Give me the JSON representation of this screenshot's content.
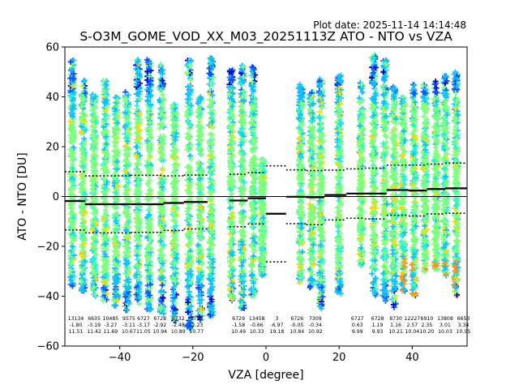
{
  "plot_date": "Plot date: 2025-11-14 14:14:48",
  "chart_data": {
    "type": "scatter",
    "title": "S-O3M_GOME_VOD_XX_M03_20251113Z ATO - NTO vs VZA",
    "xlabel": "VZA [degree]",
    "ylabel": "ATO - NTO [DU]",
    "xlim": [
      -55,
      55
    ],
    "ylim": [
      -60,
      60
    ],
    "xticks": [
      -40,
      -20,
      0,
      20,
      40
    ],
    "yticks": [
      -60,
      -40,
      -20,
      0,
      20,
      40,
      60
    ],
    "zero_line": 0,
    "scatter_bins": [
      {
        "x": -53,
        "ymin": -36,
        "ymax": 55
      },
      {
        "x": -50,
        "ymin": -38,
        "ymax": 47
      },
      {
        "x": -47,
        "ymin": -40,
        "ymax": 41
      },
      {
        "x": -44,
        "ymin": -42,
        "ymax": 47
      },
      {
        "x": -41,
        "ymin": -44,
        "ymax": 40
      },
      {
        "x": -38,
        "ymin": -46,
        "ymax": 44
      },
      {
        "x": -35,
        "ymin": -44,
        "ymax": 55
      },
      {
        "x": -32,
        "ymin": -46,
        "ymax": 56
      },
      {
        "x": -28.5,
        "ymin": -47,
        "ymax": 53
      },
      {
        "x": -25,
        "ymin": -50,
        "ymax": 37
      },
      {
        "x": -21,
        "ymin": -54,
        "ymax": 55
      },
      {
        "x": -18,
        "ymin": -50,
        "ymax": 40
      },
      {
        "x": -15,
        "ymin": -48,
        "ymax": 56
      },
      {
        "x": -9.5,
        "ymin": -42,
        "ymax": 53
      },
      {
        "x": -6.5,
        "ymin": -45,
        "ymax": 53
      },
      {
        "x": -3.5,
        "ymin": -40,
        "ymax": 52
      },
      {
        "x": -1,
        "ymin": -32,
        "ymax": 15
      },
      {
        "x": 9.5,
        "ymin": -35,
        "ymax": 45
      },
      {
        "x": 12.5,
        "ymin": -37,
        "ymax": 42
      },
      {
        "x": 15,
        "ymin": -45,
        "ymax": 48
      },
      {
        "x": 20,
        "ymin": -39,
        "ymax": 49
      },
      {
        "x": 26,
        "ymin": -28,
        "ymax": 46
      },
      {
        "x": 29.5,
        "ymin": -40,
        "ymax": 57
      },
      {
        "x": 32.5,
        "ymin": -42,
        "ymax": 55
      },
      {
        "x": 35,
        "ymin": -45,
        "ymax": 44
      },
      {
        "x": 37.5,
        "ymin": -38,
        "ymax": 40
      },
      {
        "x": 40.5,
        "ymin": -40,
        "ymax": 45
      },
      {
        "x": 43.5,
        "ymin": -30,
        "ymax": 45
      },
      {
        "x": 46.5,
        "ymin": -30,
        "ymax": 47
      },
      {
        "x": 49,
        "ymin": -32,
        "ymax": 49
      },
      {
        "x": 52,
        "ymin": -40,
        "ymax": 50
      }
    ],
    "mean_segments": [
      {
        "x0": -55,
        "x1": -49.5,
        "y": -1.8
      },
      {
        "x0": -49.5,
        "x1": -37,
        "y": -3.1
      },
      {
        "x0": -37,
        "x1": -28,
        "y": -3.1
      },
      {
        "x0": -28,
        "x1": -22.5,
        "y": -2.6
      },
      {
        "x0": -22.5,
        "x1": -16,
        "y": -2.2
      },
      {
        "x0": -10,
        "x1": -5,
        "y": -1.6
      },
      {
        "x0": -5,
        "x1": 0,
        "y": -0.7
      },
      {
        "x0": 0,
        "x1": 5.5,
        "y": -6.9
      },
      {
        "x0": 5.5,
        "x1": 11,
        "y": -0.1
      },
      {
        "x0": 11,
        "x1": 16,
        "y": -0.3
      },
      {
        "x0": 16,
        "x1": 22,
        "y": 0.6
      },
      {
        "x0": 22,
        "x1": 27,
        "y": 1.2
      },
      {
        "x0": 27,
        "x1": 33,
        "y": 1.2
      },
      {
        "x0": 33,
        "x1": 39,
        "y": 2.6
      },
      {
        "x0": 39,
        "x1": 44,
        "y": 2.4
      },
      {
        "x0": 44,
        "x1": 49,
        "y": 3.0
      },
      {
        "x0": 49,
        "x1": 55,
        "y": 3.3
      }
    ],
    "upper_segments": [
      {
        "x0": -55,
        "x1": -49.5,
        "y": 10
      },
      {
        "x0": -49.5,
        "x1": -37,
        "y": 8.3
      },
      {
        "x0": -37,
        "x1": -28,
        "y": 8.5
      },
      {
        "x0": -28,
        "x1": -22.5,
        "y": 8.3
      },
      {
        "x0": -22.5,
        "x1": -16,
        "y": 8.6
      },
      {
        "x0": -10,
        "x1": -5,
        "y": 8.9
      },
      {
        "x0": -5,
        "x1": 0,
        "y": 9.6
      },
      {
        "x0": 0,
        "x1": 5.5,
        "y": 12.3
      },
      {
        "x0": 5.5,
        "x1": 11,
        "y": 10.7
      },
      {
        "x0": 11,
        "x1": 16,
        "y": 10.4
      },
      {
        "x0": 16,
        "x1": 22,
        "y": 10.6
      },
      {
        "x0": 22,
        "x1": 27,
        "y": 11.1
      },
      {
        "x0": 27,
        "x1": 33,
        "y": 11.4
      },
      {
        "x0": 33,
        "x1": 39,
        "y": 12.6
      },
      {
        "x0": 39,
        "x1": 44,
        "y": 12.6
      },
      {
        "x0": 44,
        "x1": 49,
        "y": 13.0
      },
      {
        "x0": 49,
        "x1": 55,
        "y": 13.4
      }
    ],
    "lower_segments": [
      {
        "x0": -55,
        "x1": -49.5,
        "y": -13.4
      },
      {
        "x0": -49.5,
        "x1": -37,
        "y": -14.6
      },
      {
        "x0": -37,
        "x1": -28,
        "y": -14.4
      },
      {
        "x0": -28,
        "x1": -22.5,
        "y": -13.6
      },
      {
        "x0": -22.5,
        "x1": -16,
        "y": -13.0
      },
      {
        "x0": -10,
        "x1": -5,
        "y": -12.1
      },
      {
        "x0": -5,
        "x1": 0,
        "y": -11.0
      },
      {
        "x0": 0,
        "x1": 5.5,
        "y": -26.2
      },
      {
        "x0": 5.5,
        "x1": 11,
        "y": -10.9
      },
      {
        "x0": 11,
        "x1": 16,
        "y": -11.3
      },
      {
        "x0": 16,
        "x1": 22,
        "y": -9.4
      },
      {
        "x0": 22,
        "x1": 27,
        "y": -8.7
      },
      {
        "x0": 27,
        "x1": 33,
        "y": -9.0
      },
      {
        "x0": 33,
        "x1": 39,
        "y": -7.5
      },
      {
        "x0": 39,
        "x1": 44,
        "y": -7.8
      },
      {
        "x0": 44,
        "x1": 49,
        "y": -7.0
      },
      {
        "x0": 49,
        "x1": 55,
        "y": -6.7
      }
    ],
    "annotations": [
      {
        "x": -52,
        "lines": [
          "13134",
          "-1.80",
          "11.51"
        ]
      },
      {
        "x": -47,
        "lines": [
          "6635",
          "-3.19",
          "11.42"
        ]
      },
      {
        "x": -42.5,
        "lines": [
          "10485",
          "-3.27",
          "11.69"
        ]
      },
      {
        "x": -37.5,
        "lines": [
          "9575",
          "-3.11",
          "10.67"
        ]
      },
      {
        "x": -33.5,
        "lines": [
          "6727",
          "-3.17",
          "11.05"
        ]
      },
      {
        "x": -29,
        "lines": [
          "6728",
          "-2.92",
          "10.94"
        ]
      },
      {
        "x": -24,
        "lines": [
          "6732",
          "-2.48",
          "10.89"
        ]
      },
      {
        "x": -19,
        "lines": [
          "6727",
          "-2.23",
          "10.77"
        ]
      },
      {
        "x": -7.5,
        "lines": [
          "6729",
          "-1.58",
          "10.49"
        ]
      },
      {
        "x": -2.5,
        "lines": [
          "13458",
          "-0.66",
          "10.33"
        ]
      },
      {
        "x": 3,
        "lines": [
          "3",
          "-6.97",
          "19.18"
        ]
      },
      {
        "x": 8.5,
        "lines": [
          "6726",
          "-0.05",
          "10.84"
        ]
      },
      {
        "x": 13.5,
        "lines": [
          "7309",
          "-0.34",
          "10.92"
        ]
      },
      {
        "x": 25,
        "lines": [
          "6727",
          "0.63",
          "9.99"
        ]
      },
      {
        "x": 30.5,
        "lines": [
          "6728",
          "1.19",
          "9.93"
        ]
      },
      {
        "x": 35.5,
        "lines": [
          "8730",
          "1.16",
          "10.21"
        ]
      },
      {
        "x": 40,
        "lines": [
          "12227",
          "2.57",
          "10.04"
        ]
      },
      {
        "x": 44,
        "lines": [
          "6910",
          "2.35",
          "10.20"
        ]
      },
      {
        "x": 49,
        "lines": [
          "13808",
          "3.01",
          "10.03"
        ]
      },
      {
        "x": 54,
        "lines": [
          "6653",
          "3.34",
          "10.05"
        ]
      }
    ],
    "colors": {
      "dense": "#7fff7f",
      "mid": "#20f0e0",
      "warm": "#ffd700",
      "cool": "#10c0ff",
      "edge": "#1050ff",
      "dark": "#0000c0",
      "hot": "#ff9020"
    }
  }
}
